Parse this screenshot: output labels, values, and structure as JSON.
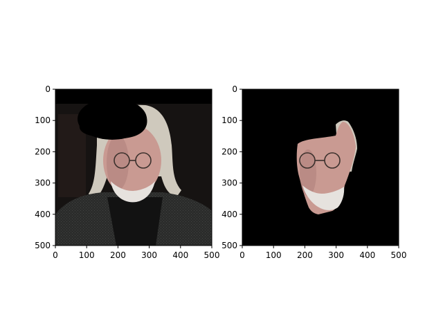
{
  "figure": {
    "background": "#ffffff",
    "subplots": [
      {
        "id": "left",
        "description": "original photo with a black occluding blob over the hair",
        "x_ticks": [
          "0",
          "100",
          "200",
          "300",
          "400",
          "500"
        ],
        "y_ticks": [
          "0",
          "100",
          "200",
          "300",
          "400",
          "500"
        ],
        "xlim": [
          0,
          500
        ],
        "ylim": [
          500,
          0
        ]
      },
      {
        "id": "right",
        "description": "segmented face on black background",
        "x_ticks": [
          "0",
          "100",
          "200",
          "300",
          "400",
          "500"
        ],
        "y_ticks": [
          "0",
          "100",
          "200",
          "300",
          "400",
          "500"
        ],
        "xlim": [
          0,
          500
        ],
        "ylim": [
          500,
          0
        ]
      }
    ]
  },
  "colors": {
    "mask": "#000000",
    "background_dark": "#161312",
    "skin": "#c99a92",
    "skin_shadow": "#a87b75",
    "hair": "#cfc9bd",
    "beard": "#e6e2de",
    "jacket": "#2a2b2a",
    "shirt": "#121212",
    "glasses": "#3a302c"
  }
}
